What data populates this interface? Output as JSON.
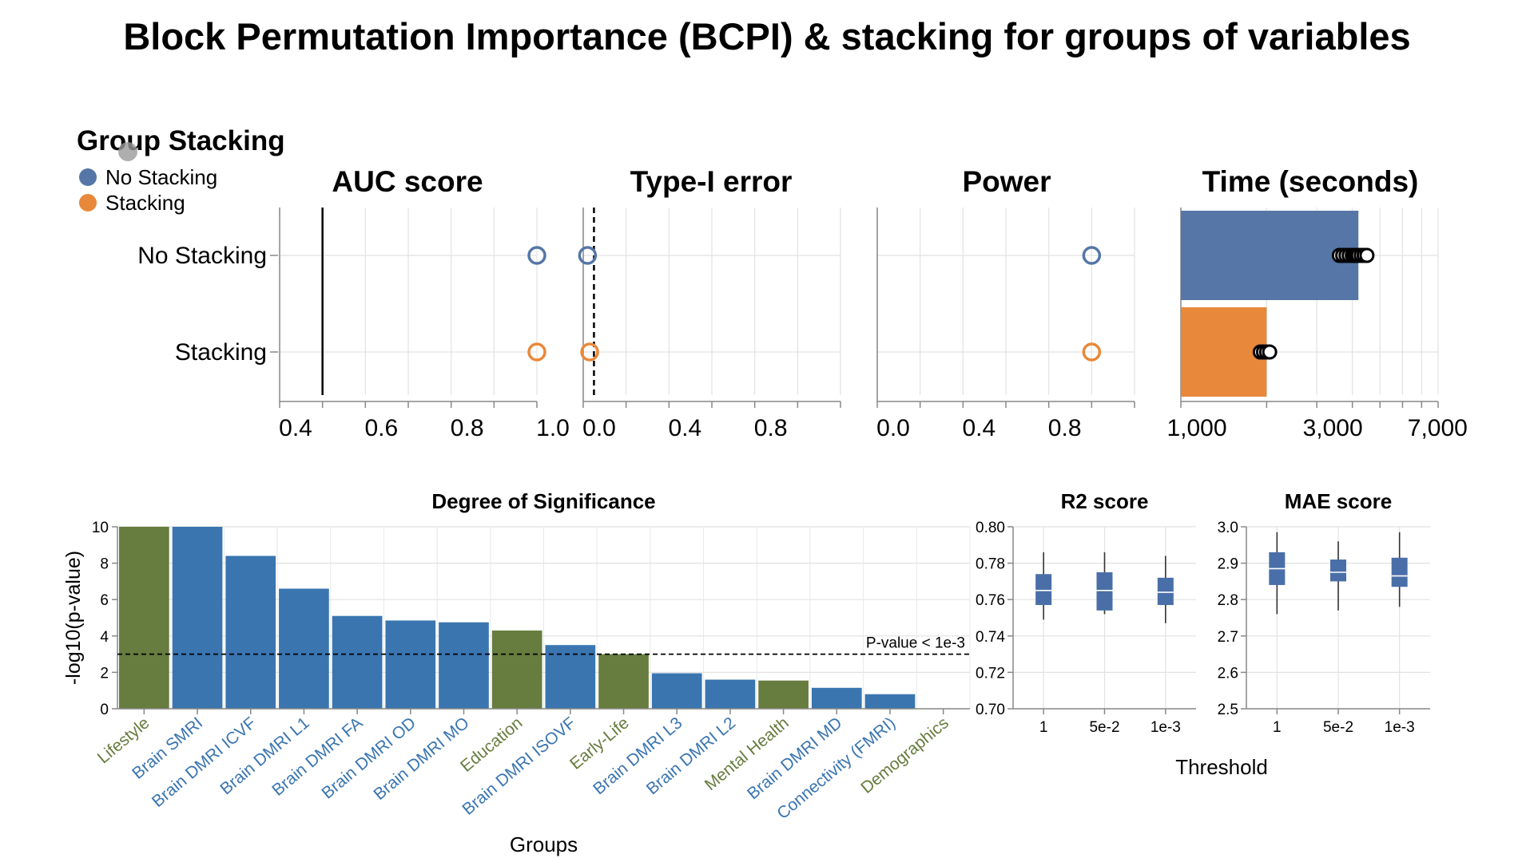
{
  "title": "Block Permutation Importance (BCPI) & stacking for groups of variables",
  "colors": {
    "no_stacking": "#5576a6",
    "stacking": "#e8883a",
    "blue_bar": "#3a75b0",
    "green_bar": "#677c3f",
    "box_fill": "#4a6fa8"
  },
  "legend": {
    "title": "Group Stacking",
    "items": [
      "No Stacking",
      "Stacking"
    ]
  },
  "chart_data": [
    {
      "id": "auc",
      "type": "scatter",
      "title": "AUC score",
      "categories": [
        "No Stacking",
        "Stacking"
      ],
      "values": [
        1.0,
        1.0
      ],
      "reference_line": 0.5,
      "xlim": [
        0.4,
        1.0
      ],
      "xticks": [
        0.4,
        0.6,
        0.8,
        1.0
      ],
      "xtick_labels": [
        "0.4",
        "0.6",
        "0.8",
        "1.0"
      ],
      "grid": true
    },
    {
      "id": "type1",
      "type": "scatter",
      "title": "Type-I error",
      "categories": [
        "No Stacking",
        "Stacking"
      ],
      "values": [
        0.02,
        0.03
      ],
      "reference_line": 0.05,
      "reference_dashed": true,
      "xlim": [
        0.0,
        1.2
      ],
      "xticks": [
        0.0,
        0.4,
        0.8
      ],
      "xtick_labels": [
        "0.0",
        "0.4",
        "0.8"
      ],
      "grid": true
    },
    {
      "id": "power",
      "type": "scatter",
      "title": "Power",
      "categories": [
        "No Stacking",
        "Stacking"
      ],
      "values": [
        1.0,
        1.0
      ],
      "xlim": [
        0.0,
        1.2
      ],
      "xticks": [
        0.0,
        0.4,
        0.8
      ],
      "xtick_labels": [
        "0.0",
        "0.4",
        "0.8"
      ],
      "grid": true
    },
    {
      "id": "time",
      "type": "bar",
      "title": "Time (seconds)",
      "scale": "log",
      "categories": [
        "No Stacking",
        "Stacking"
      ],
      "values": [
        4200,
        2000
      ],
      "points": [
        [
          3600,
          3700,
          3800,
          3900,
          4000,
          4050,
          4100,
          4150,
          4200,
          4300,
          4400,
          4500
        ],
        [
          1900,
          1950,
          2000,
          2050
        ]
      ],
      "xlim": [
        1000,
        8000
      ],
      "xticks": [
        1000,
        3000,
        7000
      ],
      "xtick_labels": [
        "1,000",
        "3,000",
        "7,000"
      ],
      "grid": true
    },
    {
      "id": "significance",
      "type": "bar",
      "title": "Degree of Significance",
      "xlabel": "Groups",
      "ylabel": "-log10(p-value)",
      "ylim": [
        0,
        10
      ],
      "yticks": [
        0,
        2,
        4,
        6,
        8,
        10
      ],
      "categories": [
        "Lifestyle",
        "Brain SMRI",
        "Brain DMRI ICVF",
        "Brain DMRI L1",
        "Brain DMRI FA",
        "Brain DMRI OD",
        "Brain DMRI MO",
        "Education",
        "Brain DMRI ISOVF",
        "Early-Life",
        "Brain DMRI L3",
        "Brain DMRI L2",
        "Mental Health",
        "Brain DMRI MD",
        "Connectivity (FMRI)",
        "Demographics"
      ],
      "values": [
        10,
        10,
        8.4,
        6.6,
        5.1,
        4.85,
        4.75,
        4.3,
        3.5,
        3.0,
        1.95,
        1.6,
        1.55,
        1.15,
        0.8,
        0
      ],
      "group_type": [
        "green",
        "blue",
        "blue",
        "blue",
        "blue",
        "blue",
        "blue",
        "green",
        "blue",
        "green",
        "blue",
        "blue",
        "green",
        "blue",
        "blue",
        "green"
      ],
      "threshold": 3,
      "threshold_label": "P-value < 1e-3",
      "grid": true
    },
    {
      "id": "r2",
      "type": "box",
      "title": "R2 score",
      "categories": [
        "1",
        "5e-2",
        "1e-3"
      ],
      "ylim": [
        0.7,
        0.8
      ],
      "yticks": [
        0.7,
        0.72,
        0.74,
        0.76,
        0.78,
        0.8
      ],
      "ytick_labels": [
        "0.70",
        "0.72",
        "0.74",
        "0.76",
        "0.78",
        "0.80"
      ],
      "boxes": [
        {
          "min": 0.749,
          "q1": 0.757,
          "median": 0.765,
          "q3": 0.774,
          "max": 0.786
        },
        {
          "min": 0.752,
          "q1": 0.754,
          "median": 0.765,
          "q3": 0.775,
          "max": 0.786
        },
        {
          "min": 0.747,
          "q1": 0.757,
          "median": 0.764,
          "q3": 0.772,
          "max": 0.784
        }
      ],
      "grid": true
    },
    {
      "id": "mae",
      "type": "box",
      "title": "MAE score",
      "xlabel": "Threshold",
      "categories": [
        "1",
        "5e-2",
        "1e-3"
      ],
      "ylim": [
        2.5,
        3.0
      ],
      "yticks": [
        2.5,
        2.6,
        2.7,
        2.8,
        2.9,
        3.0
      ],
      "ytick_labels": [
        "2.5",
        "2.6",
        "2.7",
        "2.8",
        "2.9",
        "3.0"
      ],
      "boxes": [
        {
          "min": 2.76,
          "q1": 2.84,
          "median": 2.885,
          "q3": 2.93,
          "max": 2.985
        },
        {
          "min": 2.77,
          "q1": 2.85,
          "median": 2.875,
          "q3": 2.91,
          "max": 2.96
        },
        {
          "min": 2.78,
          "q1": 2.835,
          "median": 2.865,
          "q3": 2.915,
          "max": 2.985
        }
      ],
      "grid": true
    }
  ]
}
